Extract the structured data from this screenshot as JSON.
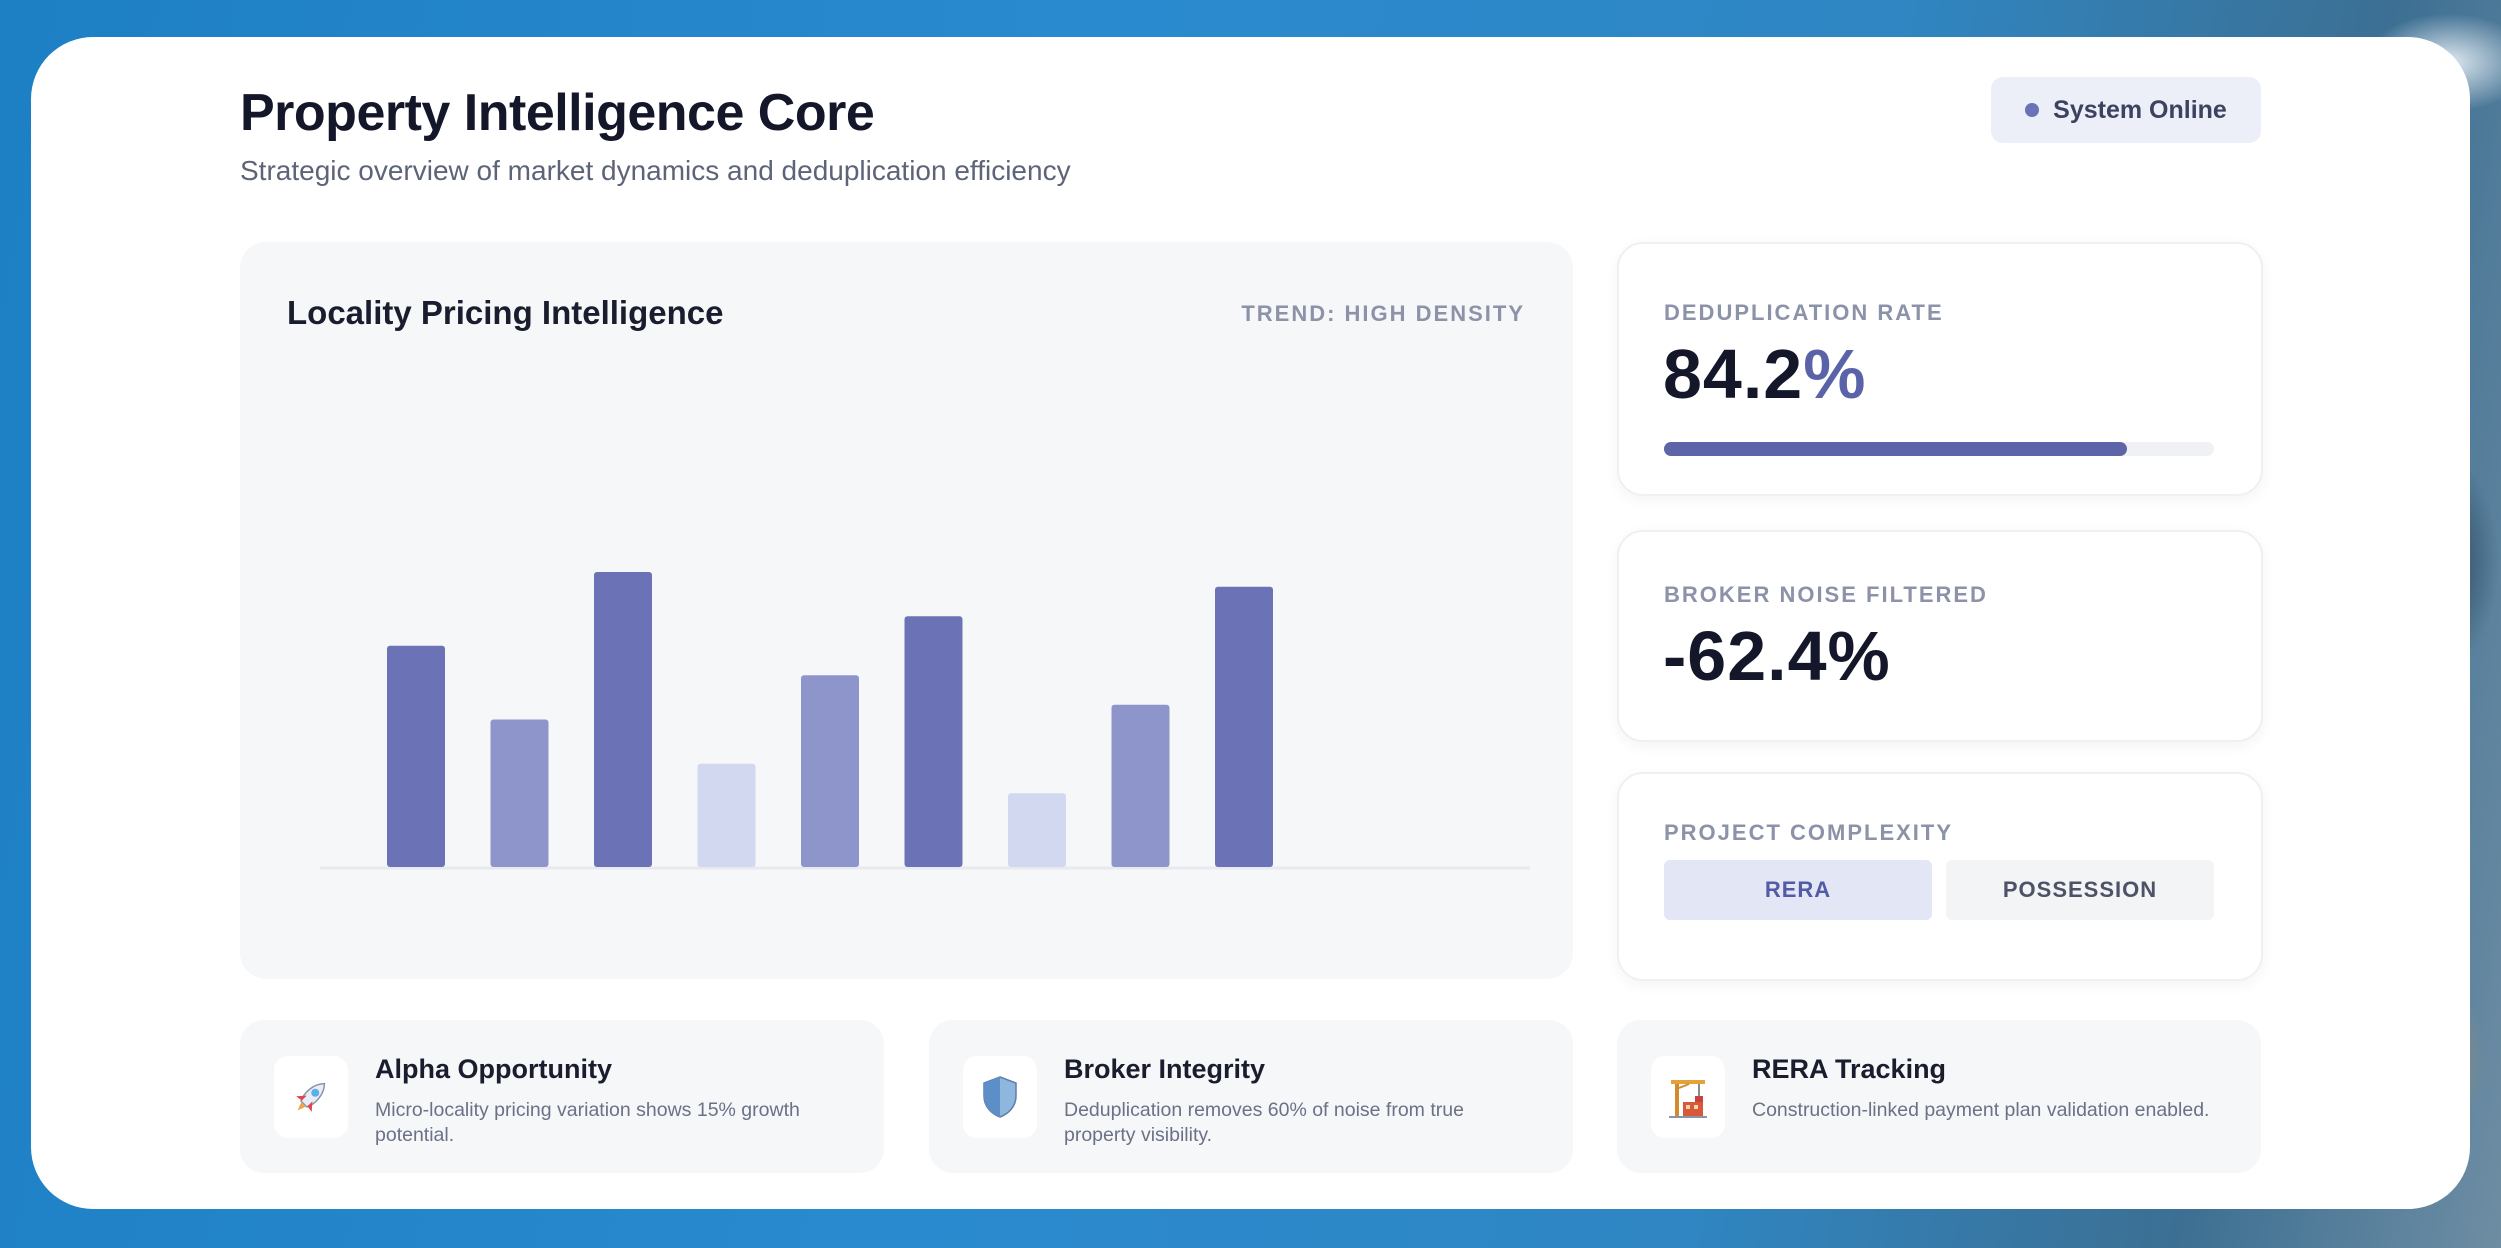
{
  "header": {
    "title": "Property Intelligence Core",
    "subtitle": "Strategic overview of market dynamics and deduplication efficiency",
    "status": "System Online"
  },
  "chart_card": {
    "title": "Locality Pricing Intelligence",
    "trend_label": "TREND: HIGH DENSITY"
  },
  "chart_data": {
    "type": "bar",
    "title": "Locality Pricing Intelligence",
    "categories": [
      "",
      "",
      "",
      "",
      "",
      "",
      "",
      "",
      ""
    ],
    "values": [
      75,
      50,
      100,
      35,
      65,
      85,
      25,
      55,
      95
    ],
    "ylim": [
      0,
      100
    ],
    "grid": false,
    "bar_colors": [
      "#6b72b6",
      "#8d95cb",
      "#6b72b6",
      "#d2d8ef",
      "#8d95cb",
      "#6b72b6",
      "#d2d8ef",
      "#8d95cb",
      "#6b72b6"
    ],
    "axis_color": "#e8eaf0"
  },
  "stats": {
    "dedup": {
      "label": "DEDUPLICATION RATE",
      "value_main": "84.2",
      "value_suffix": "%",
      "progress_fraction": 0.842
    },
    "broker": {
      "label": "BROKER NOISE FILTERED",
      "value": "-62.4%"
    },
    "complexity": {
      "label": "PROJECT COMPLEXITY",
      "options": [
        "RERA",
        "POSSESSION"
      ],
      "selected": "RERA"
    }
  },
  "features": [
    {
      "icon": "rocket-icon",
      "title": "Alpha Opportunity",
      "desc": "Micro-locality pricing variation shows 15% growth potential."
    },
    {
      "icon": "shield-icon",
      "title": "Broker Integrity",
      "desc": "Deduplication removes 60% of noise from true property visibility."
    },
    {
      "icon": "construction-icon",
      "title": "RERA Tracking",
      "desc": "Construction-linked payment plan validation enabled."
    }
  ],
  "colors": {
    "accent": "#5d64a8",
    "bar_dark": "#6b72b6",
    "bar_mid": "#8d95cb",
    "bar_light": "#d2d8ef",
    "card_bg": "#f6f7f9",
    "background": "#1d7fc4"
  }
}
